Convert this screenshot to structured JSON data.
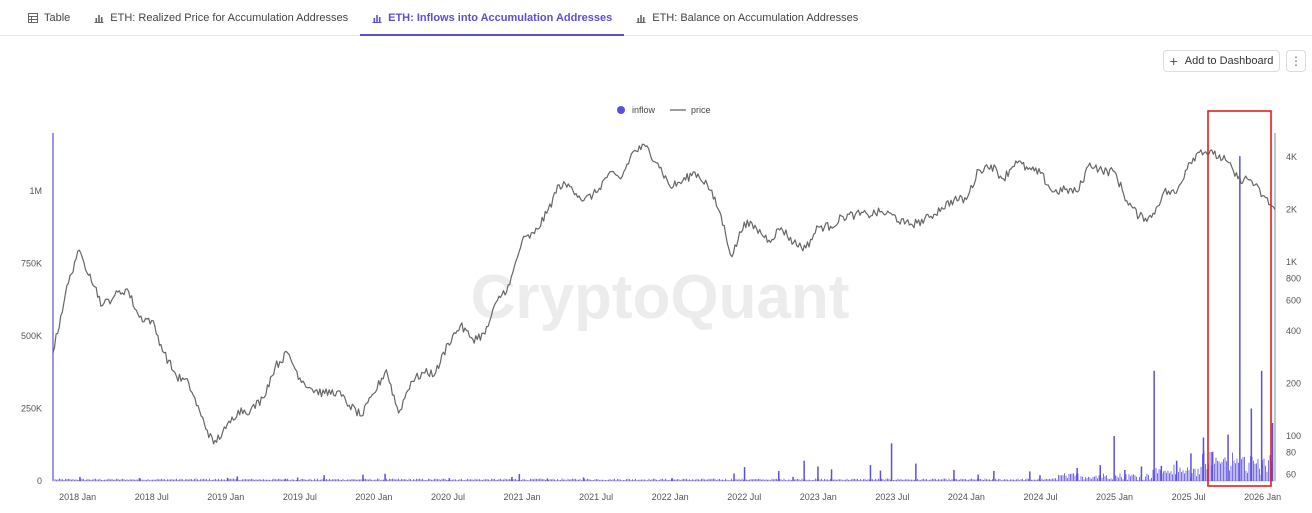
{
  "tabs": [
    {
      "label": "Table",
      "icon": "table-icon",
      "active": false
    },
    {
      "label": "ETH: Realized Price for Accumulation Addresses",
      "icon": "bar-chart-icon",
      "active": false
    },
    {
      "label": "ETH: Inflows into Accumulation Addresses",
      "icon": "bar-chart-icon",
      "active": true
    },
    {
      "label": "ETH: Balance on Accumulation Addresses",
      "icon": "bar-chart-icon",
      "active": false
    }
  ],
  "toolbar": {
    "add_to_dashboard": "Add to Dashboard"
  },
  "watermark": "CryptoQuant",
  "colors": {
    "inflow": "#5b4fe0",
    "price": "#666666",
    "accent": "#5b4fd9",
    "highlight": "#e02020"
  },
  "chart_data": {
    "type": "bar",
    "x_tick_labels": [
      "2018 Jan",
      "2018 Jul",
      "2019 Jan",
      "2019 Jul",
      "2020 Jan",
      "2020 Jul",
      "2021 Jan",
      "2021 Jul",
      "2022 Jan",
      "2022 Jul",
      "2023 Jan",
      "2023 Jul",
      "2024 Jan",
      "2024 Jul",
      "2025 Jan",
      "2025 Jul",
      "2026 Jan"
    ],
    "x_range": [
      "2017-11",
      "2026-02"
    ],
    "legend": {
      "position": "top-center",
      "entries": [
        "inflow",
        "price"
      ]
    },
    "y_left": {
      "series": "inflow",
      "ticks": [
        0,
        250000,
        500000,
        750000,
        1000000
      ],
      "tick_labels": [
        "0",
        "250K",
        "500K",
        "750K",
        "1M"
      ],
      "range": [
        0,
        1200000
      ]
    },
    "y_right": {
      "series": "price",
      "scale": "log",
      "ticks": [
        60,
        80,
        100,
        200,
        400,
        600,
        800,
        1000,
        2000,
        4000
      ],
      "tick_labels": [
        "60",
        "80",
        "100",
        "200",
        "400",
        "600",
        "800",
        "1K",
        "2K",
        "4K"
      ],
      "range": [
        55,
        5500
      ]
    },
    "series": [
      {
        "name": "price",
        "type": "line",
        "points": [
          [
            "2017-11",
            300
          ],
          [
            "2017-12",
            650
          ],
          [
            "2018-01",
            1150
          ],
          [
            "2018-02",
            850
          ],
          [
            "2018-03",
            560
          ],
          [
            "2018-04",
            640
          ],
          [
            "2018-05",
            700
          ],
          [
            "2018-06",
            480
          ],
          [
            "2018-07",
            460
          ],
          [
            "2018-08",
            300
          ],
          [
            "2018-09",
            220
          ],
          [
            "2018-10",
            200
          ],
          [
            "2018-11",
            130
          ],
          [
            "2018-12",
            90
          ],
          [
            "2019-01",
            110
          ],
          [
            "2019-02",
            140
          ],
          [
            "2019-03",
            140
          ],
          [
            "2019-04",
            165
          ],
          [
            "2019-05",
            250
          ],
          [
            "2019-06",
            300
          ],
          [
            "2019-07",
            215
          ],
          [
            "2019-08",
            185
          ],
          [
            "2019-09",
            175
          ],
          [
            "2019-10",
            180
          ],
          [
            "2019-11",
            150
          ],
          [
            "2019-12",
            130
          ],
          [
            "2020-01",
            175
          ],
          [
            "2020-02",
            240
          ],
          [
            "2020-03",
            135
          ],
          [
            "2020-04",
            205
          ],
          [
            "2020-05",
            230
          ],
          [
            "2020-06",
            230
          ],
          [
            "2020-07",
            340
          ],
          [
            "2020-08",
            430
          ],
          [
            "2020-09",
            360
          ],
          [
            "2020-10",
            385
          ],
          [
            "2020-11",
            600
          ],
          [
            "2020-12",
            740
          ],
          [
            "2021-01",
            1320
          ],
          [
            "2021-02",
            1450
          ],
          [
            "2021-03",
            1900
          ],
          [
            "2021-04",
            2770
          ],
          [
            "2021-05",
            2700
          ],
          [
            "2021-06",
            2250
          ],
          [
            "2021-07",
            2500
          ],
          [
            "2021-08",
            3200
          ],
          [
            "2021-09",
            3000
          ],
          [
            "2021-10",
            4300
          ],
          [
            "2021-11",
            4600
          ],
          [
            "2021-12",
            3700
          ],
          [
            "2022-01",
            2700
          ],
          [
            "2022-02",
            2900
          ],
          [
            "2022-03",
            3280
          ],
          [
            "2022-04",
            2800
          ],
          [
            "2022-05",
            1950
          ],
          [
            "2022-06",
            1070
          ],
          [
            "2022-07",
            1690
          ],
          [
            "2022-08",
            1550
          ],
          [
            "2022-09",
            1330
          ],
          [
            "2022-10",
            1570
          ],
          [
            "2022-11",
            1290
          ],
          [
            "2022-12",
            1200
          ],
          [
            "2023-01",
            1590
          ],
          [
            "2023-02",
            1600
          ],
          [
            "2023-03",
            1820
          ],
          [
            "2023-04",
            1870
          ],
          [
            "2023-05",
            1870
          ],
          [
            "2023-06",
            1930
          ],
          [
            "2023-07",
            1860
          ],
          [
            "2023-08",
            1650
          ],
          [
            "2023-09",
            1670
          ],
          [
            "2023-10",
            1800
          ],
          [
            "2023-11",
            2050
          ],
          [
            "2023-12",
            2280
          ],
          [
            "2024-01",
            2280
          ],
          [
            "2024-02",
            3380
          ],
          [
            "2024-03",
            3600
          ],
          [
            "2024-04",
            3000
          ],
          [
            "2024-05",
            3800
          ],
          [
            "2024-06",
            3400
          ],
          [
            "2024-07",
            3230
          ],
          [
            "2024-08",
            2520
          ],
          [
            "2024-09",
            2600
          ],
          [
            "2024-10",
            2520
          ],
          [
            "2024-11",
            3700
          ],
          [
            "2024-12",
            3330
          ],
          [
            "2025-01",
            3300
          ],
          [
            "2025-02",
            2240
          ],
          [
            "2025-03",
            1820
          ],
          [
            "2025-04",
            1800
          ],
          [
            "2025-05",
            2530
          ],
          [
            "2025-06",
            2480
          ],
          [
            "2025-07",
            3700
          ],
          [
            "2025-08",
            4400
          ],
          [
            "2025-09",
            4150
          ],
          [
            "2025-10",
            3850
          ],
          [
            "2025-11",
            3000
          ],
          [
            "2025-12",
            2970
          ],
          [
            "2026-01",
            2400
          ],
          [
            "2026-02",
            2000
          ]
        ]
      },
      {
        "name": "inflow",
        "type": "bar",
        "points": [
          [
            "2018-01",
            14000
          ],
          [
            "2018-06",
            10000
          ],
          [
            "2019-01",
            11000
          ],
          [
            "2019-02",
            16000
          ],
          [
            "2019-06",
            8000
          ],
          [
            "2019-07",
            12000
          ],
          [
            "2019-09",
            20000
          ],
          [
            "2019-12",
            22000
          ],
          [
            "2020-02",
            25000
          ],
          [
            "2020-07",
            10000
          ],
          [
            "2020-12",
            14000
          ],
          [
            "2021-01",
            24000
          ],
          [
            "2021-03",
            9000
          ],
          [
            "2021-06",
            12000
          ],
          [
            "2022-01",
            10000
          ],
          [
            "2022-06",
            26000
          ],
          [
            "2022-07",
            48000
          ],
          [
            "2022-10",
            34000
          ],
          [
            "2022-11",
            14000
          ],
          [
            "2022-12",
            70000
          ],
          [
            "2023-01",
            50000
          ],
          [
            "2023-02",
            40000
          ],
          [
            "2023-05",
            55000
          ],
          [
            "2023-06",
            36000
          ],
          [
            "2023-07",
            130000
          ],
          [
            "2023-09",
            60000
          ],
          [
            "2023-12",
            38000
          ],
          [
            "2024-02",
            22000
          ],
          [
            "2024-03",
            35000
          ],
          [
            "2024-06",
            33000
          ],
          [
            "2024-07",
            20000
          ],
          [
            "2024-10",
            45000
          ],
          [
            "2024-12",
            55000
          ],
          [
            "2025-01",
            155000
          ],
          [
            "2025-02",
            38000
          ],
          [
            "2025-03",
            50000
          ],
          [
            "2025-04",
            380000
          ],
          [
            "2025-05",
            52000
          ],
          [
            "2025-06",
            70000
          ],
          [
            "2025-07",
            95000
          ],
          [
            "2025-08",
            150000
          ],
          [
            "2025-09",
            100000
          ],
          [
            "2025-10",
            160000
          ],
          [
            "2025-11",
            1120000
          ],
          [
            "2025-12",
            250000
          ],
          [
            "2026-01",
            380000
          ],
          [
            "2026-02",
            200000
          ]
        ]
      }
    ]
  }
}
